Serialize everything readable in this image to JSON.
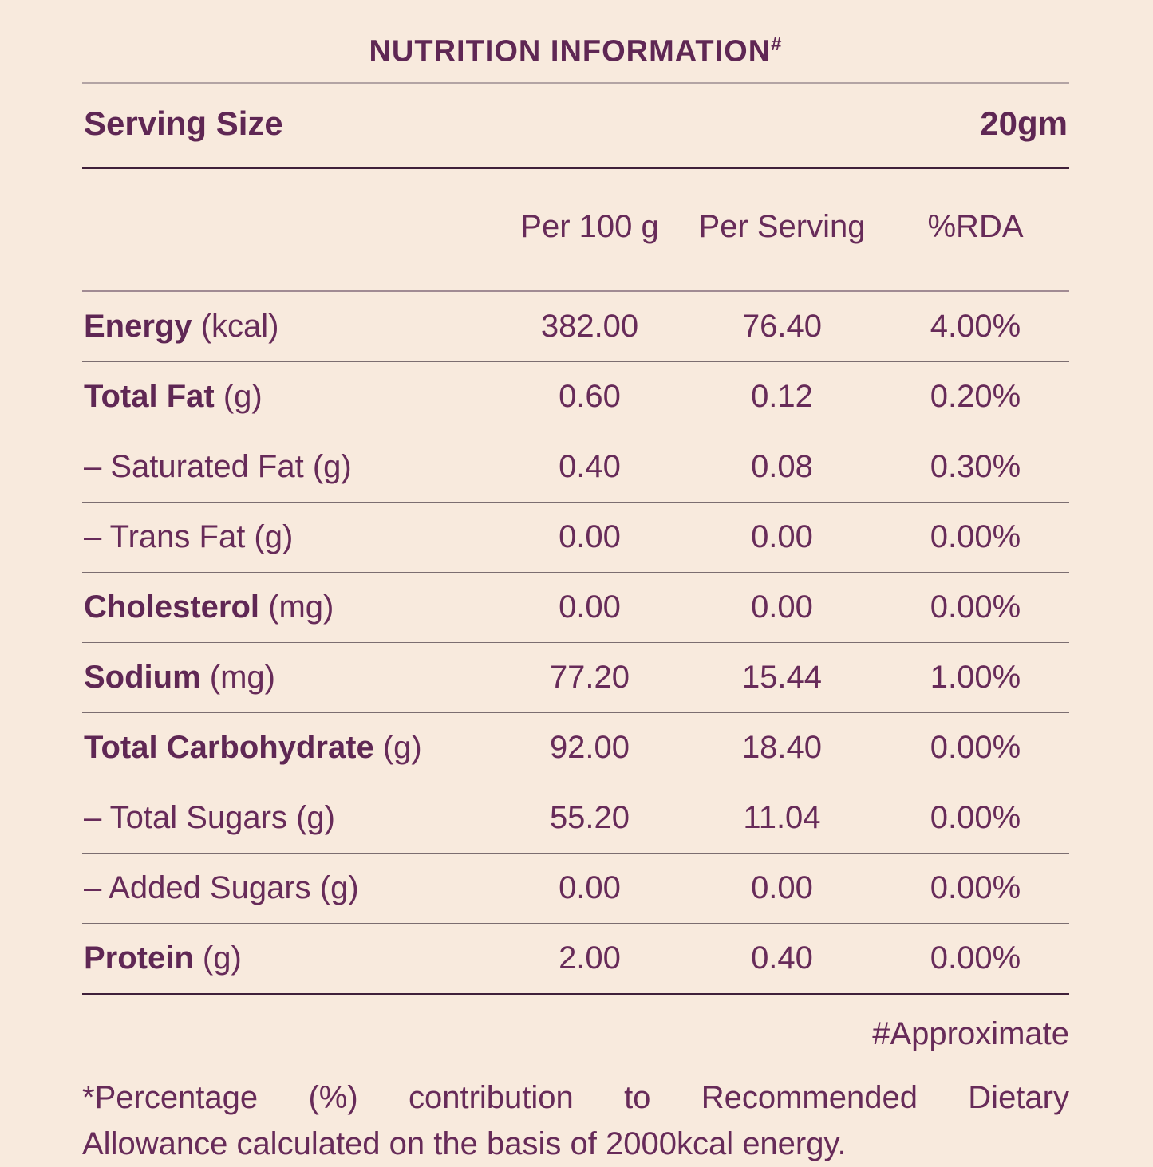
{
  "colors": {
    "background": "#f8eadd",
    "text": "#672b59",
    "text_bold": "#5f2754",
    "divider_light": "#b3a4a4",
    "divider_dark": "#40203a",
    "divider_mauve": "#a18b93",
    "divider_row": "#7c6e70"
  },
  "header": {
    "title": "NUTRITION INFORMATION",
    "title_superscript": "#"
  },
  "serving": {
    "label": "Serving Size",
    "value": "20gm"
  },
  "table": {
    "columns": [
      "Per 100 g",
      "Per Serving",
      "%RDA"
    ],
    "rows": [
      {
        "bold": "Energy",
        "rest": " (kcal)",
        "per100g": "382.00",
        "perServing": "76.40",
        "rda": "4.00%"
      },
      {
        "bold": "Total Fat",
        "rest": " (g)",
        "per100g": "0.60",
        "perServing": "0.12",
        "rda": "0.20%"
      },
      {
        "bold": "",
        "rest": "– Saturated Fat (g)",
        "per100g": "0.40",
        "perServing": "0.08",
        "rda": "0.30%"
      },
      {
        "bold": "",
        "rest": "– Trans Fat (g)",
        "per100g": "0.00",
        "perServing": "0.00",
        "rda": "0.00%"
      },
      {
        "bold": "Cholesterol",
        "rest": " (mg)",
        "per100g": "0.00",
        "perServing": "0.00",
        "rda": "0.00%"
      },
      {
        "bold": "Sodium",
        "rest": " (mg)",
        "per100g": "77.20",
        "perServing": "15.44",
        "rda": "1.00%"
      },
      {
        "bold": "Total Carbohydrate",
        "rest": " (g)",
        "per100g": "92.00",
        "perServing": "18.40",
        "rda": "0.00%"
      },
      {
        "bold": "",
        "rest": "– Total Sugars (g)",
        "per100g": "55.20",
        "perServing": "11.04",
        "rda": "0.00%"
      },
      {
        "bold": "",
        "rest": "– Added Sugars (g)",
        "per100g": "0.00",
        "perServing": "0.00",
        "rda": "0.00%"
      },
      {
        "bold": "Protein",
        "rest": " (g)",
        "per100g": "2.00",
        "perServing": "0.40",
        "rda": "0.00%"
      }
    ]
  },
  "footnotes": {
    "approximate": "#Approximate",
    "line1": "*Percentage (%) contribution to Recommended Dietary",
    "line2": "Allowance calculated on the basis of 2000kcal energy."
  }
}
